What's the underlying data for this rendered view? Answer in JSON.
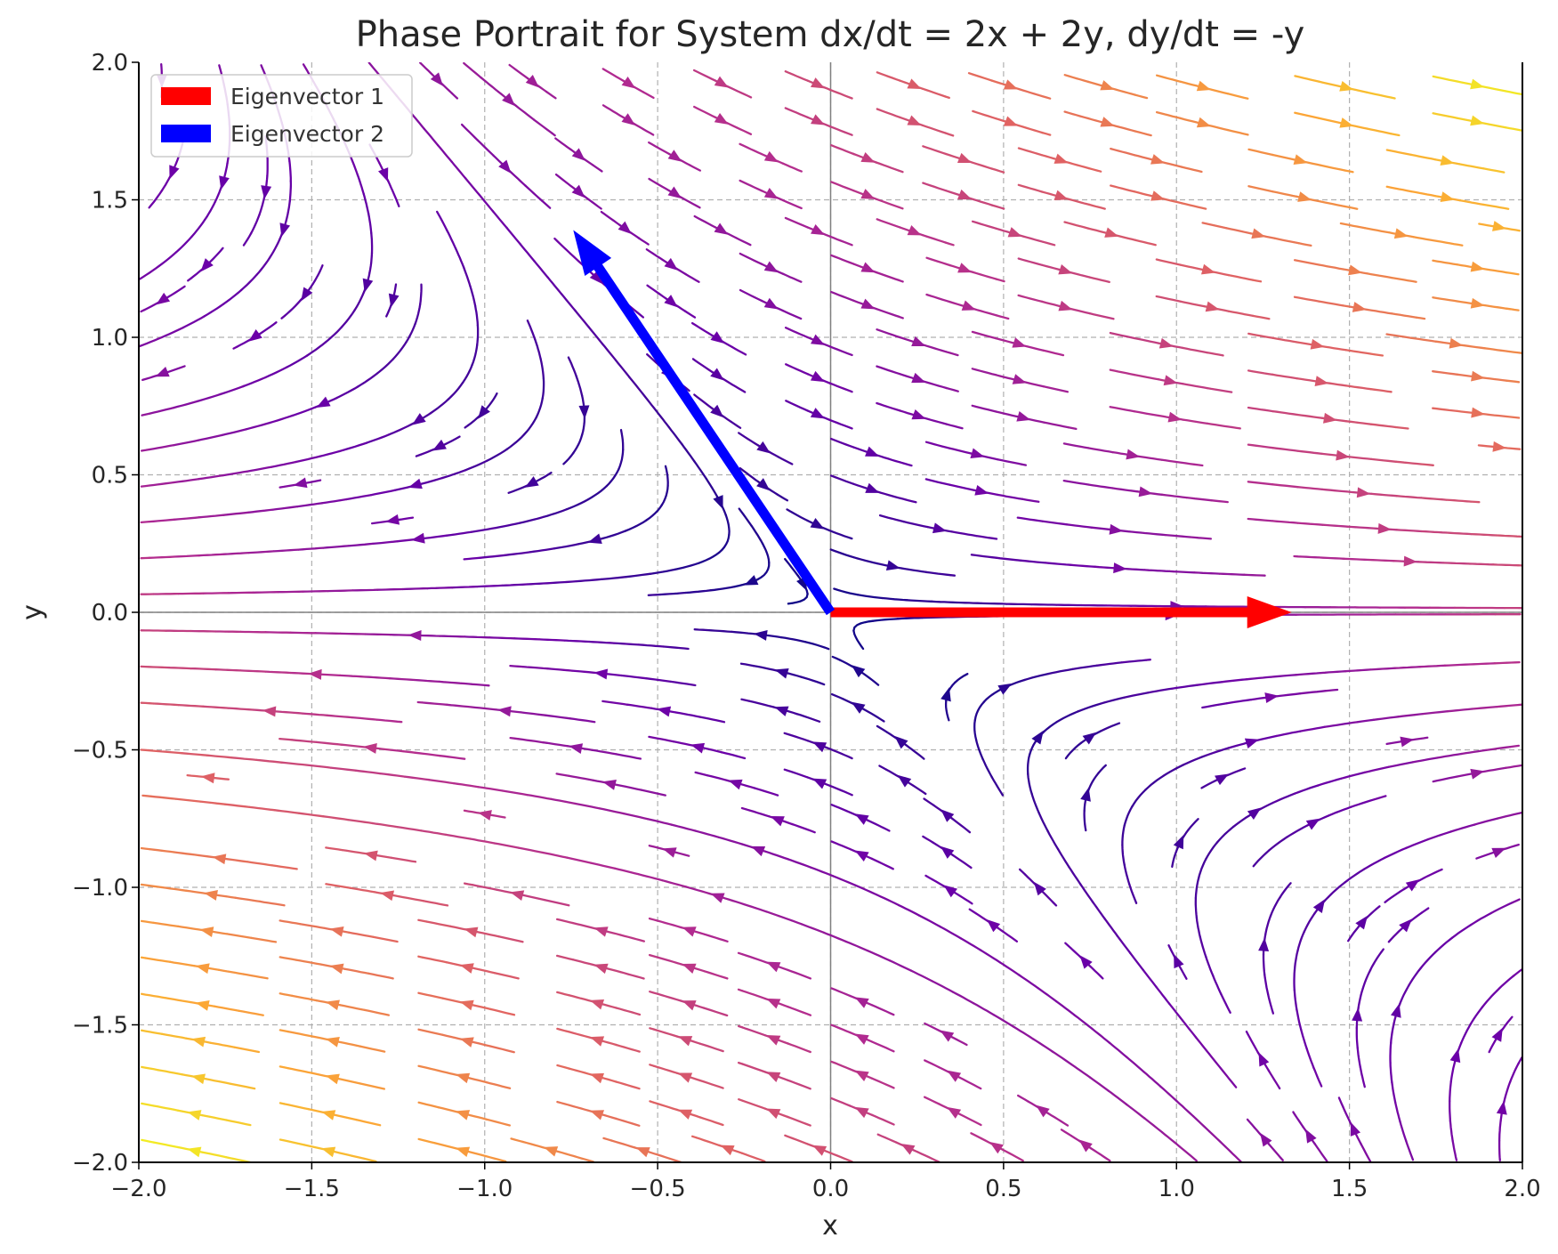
{
  "chart_data": {
    "type": "streamplot",
    "title": "Phase Portrait for System dx/dt = 2x + 2y, dy/dt = -y",
    "xlabel": "x",
    "ylabel": "y",
    "xlim": [
      -2.0,
      2.0
    ],
    "ylim": [
      -2.0,
      2.0
    ],
    "xticks": [
      -2.0,
      -1.5,
      -1.0,
      -0.5,
      0.0,
      0.5,
      1.0,
      1.5,
      2.0
    ],
    "yticks": [
      -2.0,
      -1.5,
      -1.0,
      -0.5,
      0.0,
      0.5,
      1.0,
      1.5,
      2.0
    ],
    "xtick_labels": [
      "−2.0",
      "−1.5",
      "−1.0",
      "−0.5",
      "0.0",
      "0.5",
      "1.0",
      "1.5",
      "2.0"
    ],
    "ytick_labels": [
      "−2.0",
      "−1.5",
      "−1.0",
      "−0.5",
      "0.0",
      "0.5",
      "1.0",
      "1.5",
      "2.0"
    ],
    "grid": true,
    "system": {
      "dxdt": [
        2,
        2
      ],
      "dydt": [
        0,
        -1
      ]
    },
    "colormap": "plasma",
    "colormap_stops": [
      "#0d0887",
      "#6a00a8",
      "#b12a90",
      "#e16462",
      "#fca636",
      "#f0f921"
    ],
    "vectors": [
      {
        "name": "Eigenvector 1",
        "origin": [
          0,
          0
        ],
        "vector": [
          1.333,
          0.0
        ],
        "color": "#ff0000"
      },
      {
        "name": "Eigenvector 2",
        "origin": [
          0,
          0
        ],
        "vector": [
          -0.744,
          1.39
        ],
        "color": "#0000ff"
      }
    ],
    "legend": {
      "position": "upper-left",
      "entries": [
        {
          "label": "Eigenvector 1",
          "color": "#ff0000"
        },
        {
          "label": "Eigenvector 2",
          "color": "#0000ff"
        }
      ]
    }
  }
}
